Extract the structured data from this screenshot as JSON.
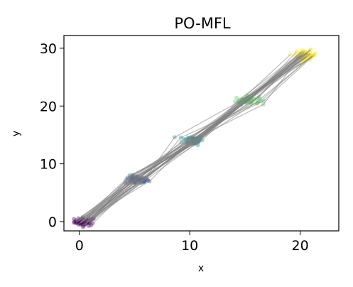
{
  "chart_data": {
    "type": "scatter",
    "title": "PO-MFL",
    "xlabel": "x",
    "ylabel": "y",
    "xlim": [
      -1.4,
      23.5
    ],
    "ylim": [
      -1.6,
      32.2
    ],
    "xticks": [
      0,
      10,
      20
    ],
    "yticks": [
      0,
      10,
      20,
      30
    ],
    "grid": false,
    "legend": "none",
    "clusters": [
      {
        "center": [
          0.5,
          0.0
        ],
        "color": "#440154",
        "spread": [
          0.8,
          0.6
        ],
        "count": 60
      },
      {
        "center": [
          5.2,
          7.2
        ],
        "color": "#3b528b",
        "spread": [
          0.9,
          0.6
        ],
        "count": 60
      },
      {
        "center": [
          10.3,
          14.1
        ],
        "color": "#21918c",
        "spread": [
          0.8,
          0.7
        ],
        "count": 60
      },
      {
        "center": [
          15.2,
          21.0
        ],
        "color": "#5ec962",
        "spread": [
          0.9,
          0.6
        ],
        "count": 60
      },
      {
        "center": [
          20.5,
          28.8
        ],
        "color": "#fde725",
        "spread": [
          0.8,
          0.7
        ],
        "count": 60
      }
    ],
    "trajectory_color": "#808080",
    "trajectory_count": 30
  }
}
